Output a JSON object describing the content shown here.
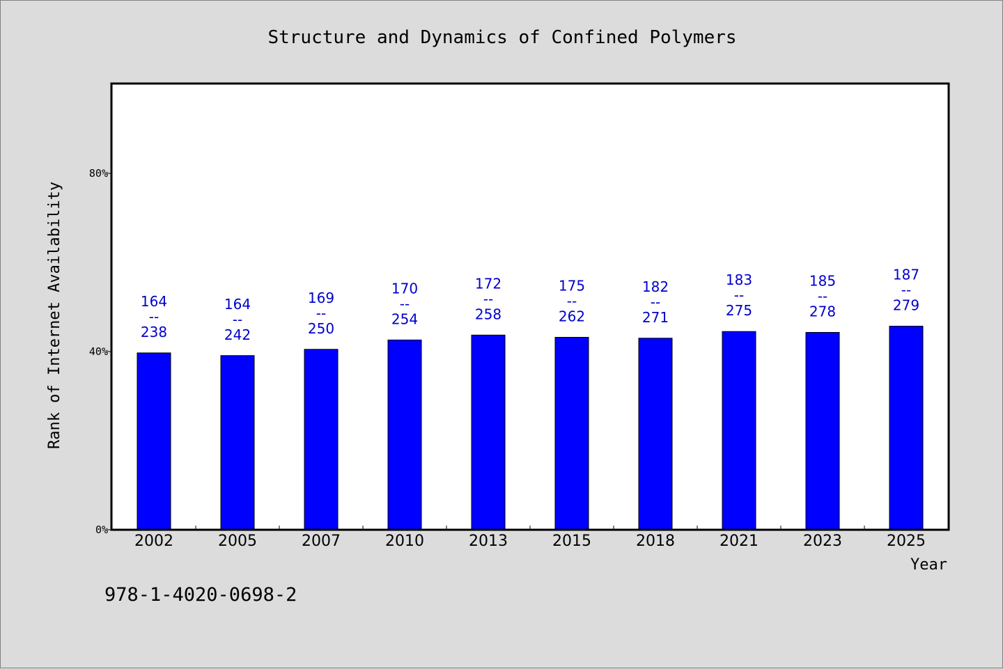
{
  "chart_data": {
    "type": "bar",
    "title": "Structure and Dynamics of Confined Polymers",
    "xlabel": "Year",
    "ylabel": "Rank of Internet Availability",
    "categories": [
      "2002",
      "2005",
      "2007",
      "2010",
      "2013",
      "2015",
      "2018",
      "2021",
      "2023",
      "2025"
    ],
    "values": [
      39.7,
      39.1,
      40.5,
      42.6,
      43.7,
      43.2,
      43.0,
      44.5,
      44.3,
      45.7
    ],
    "data_labels": [
      {
        "top": "164",
        "sep": "--",
        "bottom": "238"
      },
      {
        "top": "164",
        "sep": "--",
        "bottom": "242"
      },
      {
        "top": "169",
        "sep": "--",
        "bottom": "250"
      },
      {
        "top": "170",
        "sep": "--",
        "bottom": "254"
      },
      {
        "top": "172",
        "sep": "--",
        "bottom": "258"
      },
      {
        "top": "175",
        "sep": "--",
        "bottom": "262"
      },
      {
        "top": "182",
        "sep": "--",
        "bottom": "271"
      },
      {
        "top": "183",
        "sep": "--",
        "bottom": "275"
      },
      {
        "top": "185",
        "sep": "--",
        "bottom": "278"
      },
      {
        "top": "187",
        "sep": "--",
        "bottom": "279"
      }
    ],
    "yticks": [
      {
        "value": 0,
        "label": "0%"
      },
      {
        "value": 40,
        "label": "40%"
      },
      {
        "value": 80,
        "label": "80%"
      }
    ],
    "ylim": [
      0,
      100
    ],
    "grid": false,
    "legend": "none",
    "bar_color": "#0000ff",
    "label_color": "#0000cc"
  },
  "footer": {
    "isbn": "978-1-4020-0698-2"
  }
}
